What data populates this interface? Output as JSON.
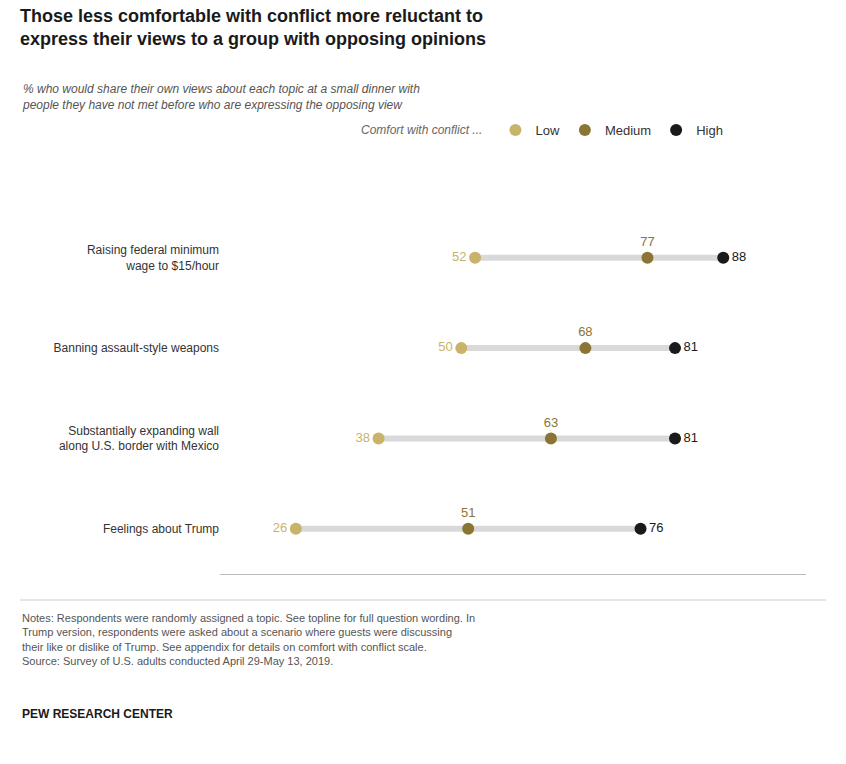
{
  "chart_data": {
    "type": "dot",
    "title": "Those less comfortable with conflict more reluctant to\nexpress their views to a group with opposing opinions",
    "subtitle": "% who would share their own views about each topic at a small dinner with\npeople they have not met before who are expressing the opposing view",
    "categories": [
      "Raising federal minimum\nwage to $15/hour",
      "Banning assault-style weapons",
      "Substantially expanding wall\nalong U.S. border with Mexico",
      "Feelings about Trump"
    ],
    "series": [
      {
        "name": "Low",
        "color": "#C9B36A",
        "values": [
          52,
          50,
          38,
          26
        ]
      },
      {
        "name": "Medium",
        "color": "#8B7534",
        "values": [
          77,
          68,
          63,
          51
        ]
      },
      {
        "name": "High",
        "color": "#1a1a1a",
        "values": [
          88,
          81,
          81,
          76
        ]
      }
    ],
    "color": "#d9d9d9",
    "orientation": "horizontal",
    "xlim": [
      15,
      100
    ],
    "data_labels": true,
    "tick_labels": "y",
    "grid": false,
    "legend": "top",
    "annotations": [
      "Comfort with conflict ...",
      "Notes: Respondents were randomly assigned a topic. See topline for full question wording. In\nTrump version, respondents were asked about a scenario where guests were discussing\ntheir like or dislike of Trump. See appendix for details on comfort with conflict scale.\nSource: Survey of U.S. adults conducted April 29-May 13, 2019.",
      "PEW RESEARCH CENTER"
    ]
  }
}
